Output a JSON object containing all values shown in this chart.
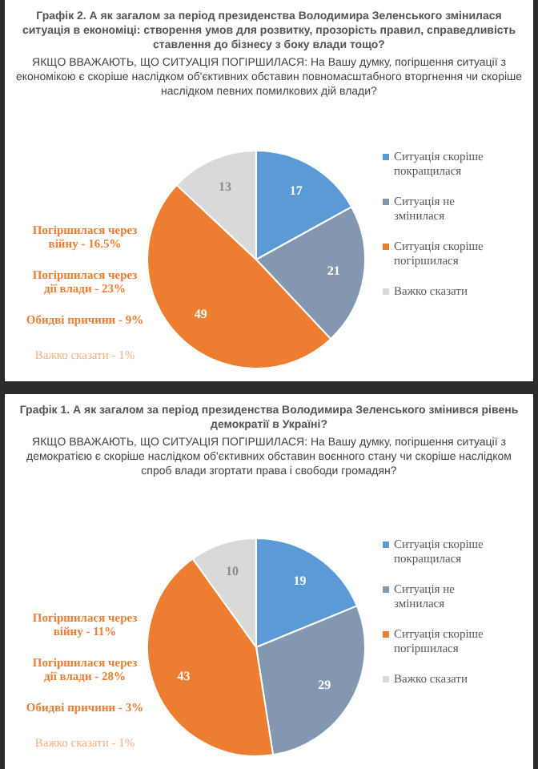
{
  "chart_data": [
    {
      "type": "pie",
      "title": "Графік 2. А як загалом за період президенства Володимира Зеленського змінилася ситуація в економіці: створення умов для розвитку, прозорість правил, справедливість ставлення до бізнесу з боку влади тощо?",
      "subtitle": "ЯКЩО ВВАЖАЮТЬ, ЩО СИТУАЦІЯ ПОГІРШИЛАСЯ: На Вашу думку, погіршення ситуації з економікою є скоріше наслідком об'єктивних обставин повномасштабного вторгнення чи скоріше наслідком певних помилкових дій влади?",
      "categories": [
        "Ситуація скоріше покращилася",
        "Ситуація не змінилася",
        "Ситуація скоріше погіршилася",
        "Важко сказати"
      ],
      "values": [
        17,
        21,
        49,
        13
      ],
      "colors": [
        "#5b9bd5",
        "#8497b0",
        "#ed7d31",
        "#d9d9d9"
      ],
      "data_labels": true,
      "legend": "right",
      "annotations": [
        "Погіршилася через війну - 16.5%",
        "Погіршилася через дії влади - 23%",
        "Обидві причини - 9%",
        "Важко сказати - 1%"
      ]
    },
    {
      "type": "pie",
      "title": "Графік 1. А як загалом за період президенства Володимира Зеленського змінився рівень демократії в Україні?",
      "subtitle": "ЯКЩО ВВАЖАЮТЬ, ЩО СИТУАЦІЯ ПОГІРШИЛАСЯ: На Вашу думку, погіршення ситуації з демократією є скоріше наслідком об'єктивних обставин воєнного стану чи скоріше наслідком спроб влади згортати права і свободи громадян?",
      "categories": [
        "Ситуація скоріше покращилася",
        "Ситуація не змінилася",
        "Ситуація скоріше погіршилася",
        "Важко сказати"
      ],
      "values": [
        19,
        29,
        43,
        10
      ],
      "colors": [
        "#5b9bd5",
        "#8497b0",
        "#ed7d31",
        "#d9d9d9"
      ],
      "data_labels": true,
      "legend": "right",
      "annotations": [
        "Погіршилася через війну - 11%",
        "Погіршилася через дії влади - 28%",
        "Обидві причини - 3%",
        "Важко сказати - 1%"
      ]
    }
  ]
}
